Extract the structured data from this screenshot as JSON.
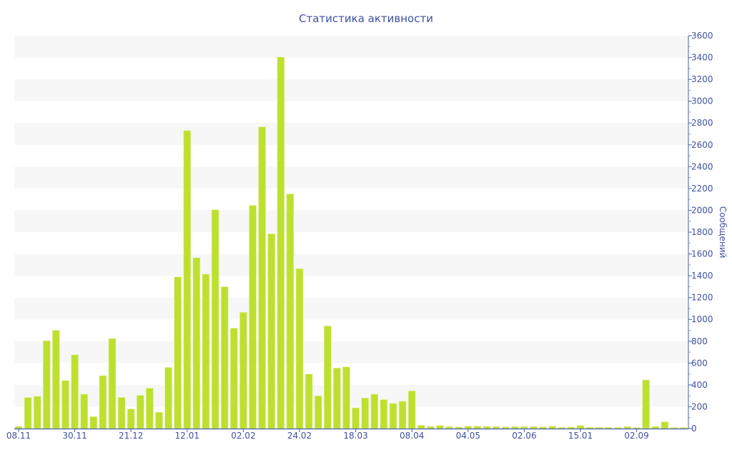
{
  "chart_data": {
    "type": "bar",
    "title": "Статистика активности",
    "xlabel": "",
    "ylabel": "Сообщений",
    "ylim": [
      0,
      3600
    ],
    "y_ticks": [
      0,
      200,
      400,
      600,
      800,
      1000,
      1200,
      1400,
      1600,
      1800,
      2000,
      2200,
      2400,
      2600,
      2800,
      3000,
      3200,
      3400,
      3600
    ],
    "x_tick_labels": [
      {
        "index": 0,
        "label": "08.11"
      },
      {
        "index": 6,
        "label": "30.11"
      },
      {
        "index": 12,
        "label": "21.12"
      },
      {
        "index": 18,
        "label": "12.01"
      },
      {
        "index": 24,
        "label": "02.02"
      },
      {
        "index": 30,
        "label": "24.02"
      },
      {
        "index": 36,
        "label": "18.03"
      },
      {
        "index": 42,
        "label": "08.04"
      },
      {
        "index": 48,
        "label": "04.05"
      },
      {
        "index": 54,
        "label": "02.06"
      },
      {
        "index": 60,
        "label": "15.01"
      },
      {
        "index": 66,
        "label": "02.09"
      }
    ],
    "values": [
      20,
      285,
      295,
      805,
      900,
      440,
      675,
      315,
      110,
      485,
      825,
      285,
      180,
      305,
      370,
      150,
      560,
      1390,
      2730,
      1565,
      1415,
      2005,
      1300,
      920,
      1065,
      2045,
      2765,
      1785,
      3405,
      2150,
      1465,
      500,
      300,
      940,
      555,
      565,
      190,
      280,
      315,
      265,
      230,
      250,
      345,
      30,
      20,
      28,
      18,
      15,
      22,
      22,
      20,
      18,
      15,
      18,
      18,
      18,
      15,
      22,
      12,
      15,
      28,
      12,
      12,
      12,
      10,
      18,
      10,
      445,
      20,
      62,
      10,
      10
    ],
    "grid": "alternating horizontal bands",
    "legend": "none",
    "colors": {
      "bar": "#bde02f",
      "axis": "#4a5ea8",
      "text": "#3f51a0",
      "band": "#f7f7f7"
    }
  }
}
